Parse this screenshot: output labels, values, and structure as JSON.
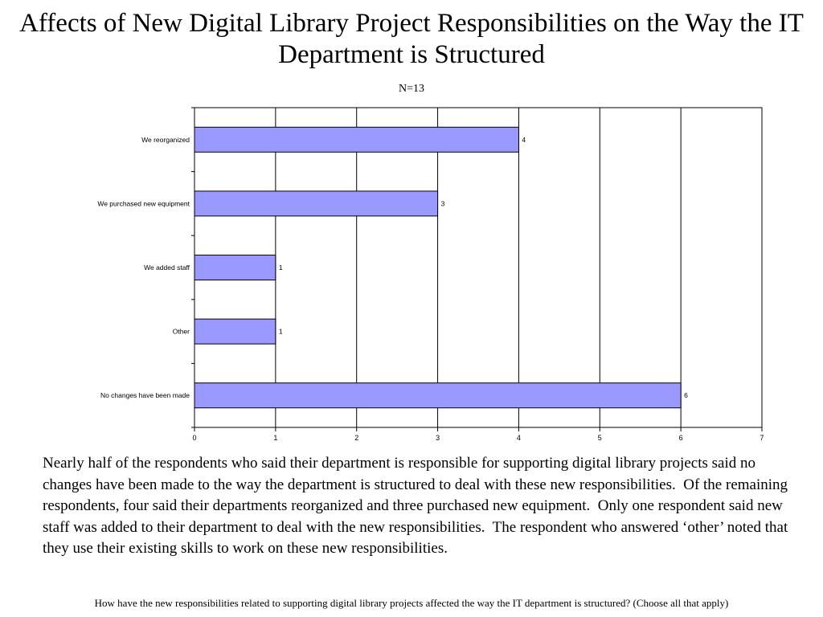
{
  "slide": {
    "title": "Affects of New Digital Library Project Responsibilities on the Way the IT Department is Structured",
    "subtitle": "N=13",
    "summary": "Nearly half of the respondents who said their department is responsible for supporting digital library projects said no changes have been made to the way the department is structured to deal with these new responsibilities.  Of the remaining respondents, four said their departments reorganized and three purchased new equipment.  Only one respondent said new staff was added to their department to deal with the new responsibilities.  The respondent who answered ‘other’ noted that they use their existing skills to work on these new responsibilities.",
    "question": "How have the new responsibilities related to supporting digital library projects affected the way the IT department is structured? (Choose all that apply)"
  },
  "chart_data": {
    "type": "bar",
    "orientation": "horizontal",
    "categories": [
      "We reorganized",
      "We purchased new  equipment",
      "We added staff",
      "Other",
      "No changes have been made"
    ],
    "values": [
      4,
      3,
      1,
      1,
      6
    ],
    "data_labels": [
      "4",
      "3",
      "1",
      "1",
      "6"
    ],
    "xlim": [
      0,
      7
    ],
    "x_ticks": [
      "0",
      "1",
      "2",
      "3",
      "4",
      "5",
      "6",
      "7"
    ],
    "grid": true,
    "legend": "none",
    "bar_color": "#9999ff"
  }
}
